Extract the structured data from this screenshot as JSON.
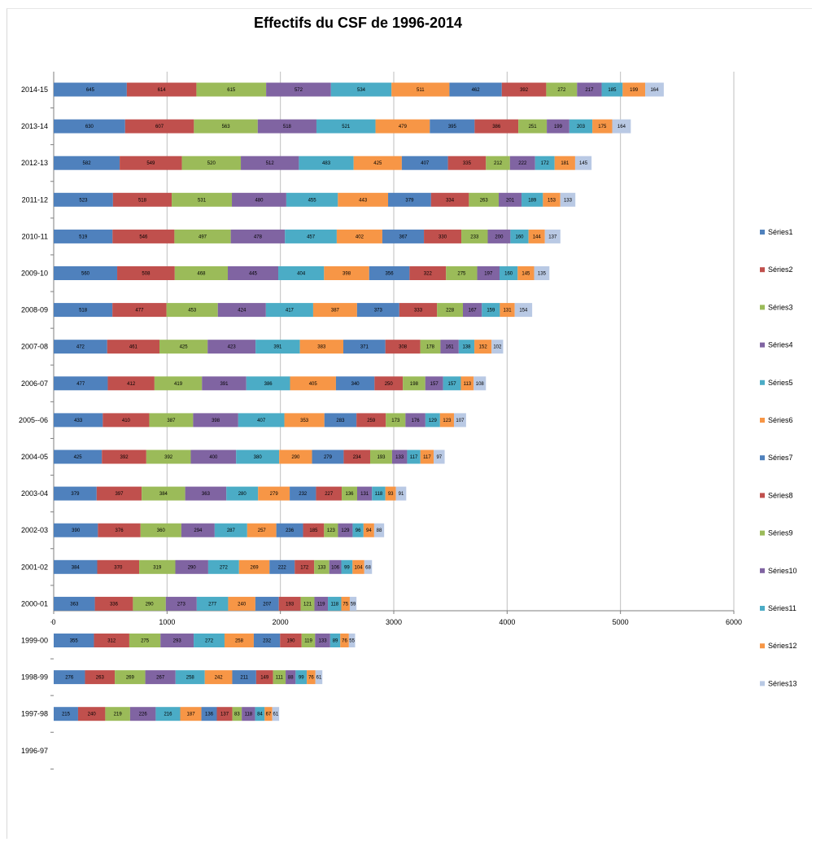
{
  "chart_data": {
    "type": "bar",
    "orientation": "horizontal",
    "stacked": true,
    "title": "Effectifs du CSF de 1996-2014",
    "xlim": [
      0,
      6000
    ],
    "xticks": [
      0,
      1000,
      2000,
      3000,
      4000,
      5000,
      6000
    ],
    "grid": true,
    "legend_position": "right",
    "categories": [
      "2014-15",
      "2013-14",
      "2012-13",
      "2011-12",
      "2010-11",
      "2009-10",
      "2008-09",
      "2007-08",
      "2006-07",
      "2005--06",
      "2004-05",
      "2003-04",
      "2002-03",
      "2001-02",
      "2000-01",
      "1999-00",
      "1998-99",
      "1997-98",
      "1996-97"
    ],
    "series": [
      {
        "name": "Séries1",
        "color": "#4f81bd",
        "values": [
          645,
          630,
          582,
          523,
          519,
          560,
          518,
          472,
          477,
          433,
          425,
          379,
          390,
          384,
          363,
          355,
          276,
          215,
          null
        ]
      },
      {
        "name": "Séries2",
        "color": "#c0504d",
        "values": [
          614,
          607,
          549,
          518,
          546,
          508,
          477,
          461,
          412,
          410,
          392,
          397,
          376,
          370,
          336,
          312,
          263,
          240,
          null
        ]
      },
      {
        "name": "Séries3",
        "color": "#9bbb59",
        "values": [
          615,
          563,
          520,
          531,
          497,
          468,
          453,
          425,
          419,
          387,
          392,
          384,
          360,
          319,
          290,
          275,
          269,
          219,
          null
        ]
      },
      {
        "name": "Séries4",
        "color": "#8064a2",
        "values": [
          572,
          518,
          512,
          480,
          478,
          445,
          424,
          423,
          391,
          398,
          400,
          363,
          294,
          290,
          273,
          293,
          267,
          226,
          null
        ]
      },
      {
        "name": "Séries5",
        "color": "#4bacc6",
        "values": [
          534,
          521,
          483,
          455,
          457,
          404,
          417,
          391,
          386,
          407,
          380,
          280,
          287,
          272,
          277,
          272,
          258,
          216,
          null
        ]
      },
      {
        "name": "Séries6",
        "color": "#f79646",
        "values": [
          511,
          479,
          425,
          443,
          402,
          398,
          387,
          383,
          405,
          353,
          290,
          279,
          257,
          269,
          240,
          258,
          242,
          187,
          null
        ]
      },
      {
        "name": "Séries7",
        "color": "#4f81bd",
        "values": [
          462,
          395,
          407,
          379,
          367,
          356,
          373,
          371,
          340,
          283,
          279,
          232,
          236,
          222,
          207,
          232,
          211,
          136,
          null
        ]
      },
      {
        "name": "Séries8",
        "color": "#c0504d",
        "values": [
          392,
          386,
          335,
          334,
          330,
          322,
          333,
          308,
          250,
          259,
          234,
          227,
          185,
          172,
          193,
          190,
          149,
          137,
          null
        ]
      },
      {
        "name": "Séries9",
        "color": "#9bbb59",
        "values": [
          272,
          251,
          212,
          263,
          233,
          275,
          228,
          178,
          198,
          173,
          193,
          136,
          123,
          133,
          121,
          119,
          111,
          83,
          null
        ]
      },
      {
        "name": "Séries10",
        "color": "#8064a2",
        "values": [
          217,
          199,
          222,
          201,
          200,
          197,
          167,
          161,
          157,
          176,
          133,
          131,
          129,
          106,
          119,
          133,
          88,
          118,
          null
        ]
      },
      {
        "name": "Séries11",
        "color": "#4bacc6",
        "values": [
          185,
          203,
          172,
          189,
          160,
          160,
          159,
          138,
          157,
          129,
          117,
          118,
          96,
          99,
          118,
          89,
          99,
          84,
          null
        ]
      },
      {
        "name": "Séries12",
        "color": "#f79646",
        "values": [
          199,
          175,
          181,
          153,
          144,
          145,
          131,
          152,
          113,
          123,
          117,
          93,
          94,
          104,
          75,
          76,
          76,
          67,
          null
        ]
      },
      {
        "name": "Séries13",
        "color": "#b9c9e4",
        "values": [
          164,
          164,
          145,
          133,
          137,
          135,
          154,
          102,
          108,
          107,
          97,
          91,
          88,
          68,
          59,
          55,
          61,
          61,
          null
        ]
      }
    ]
  }
}
